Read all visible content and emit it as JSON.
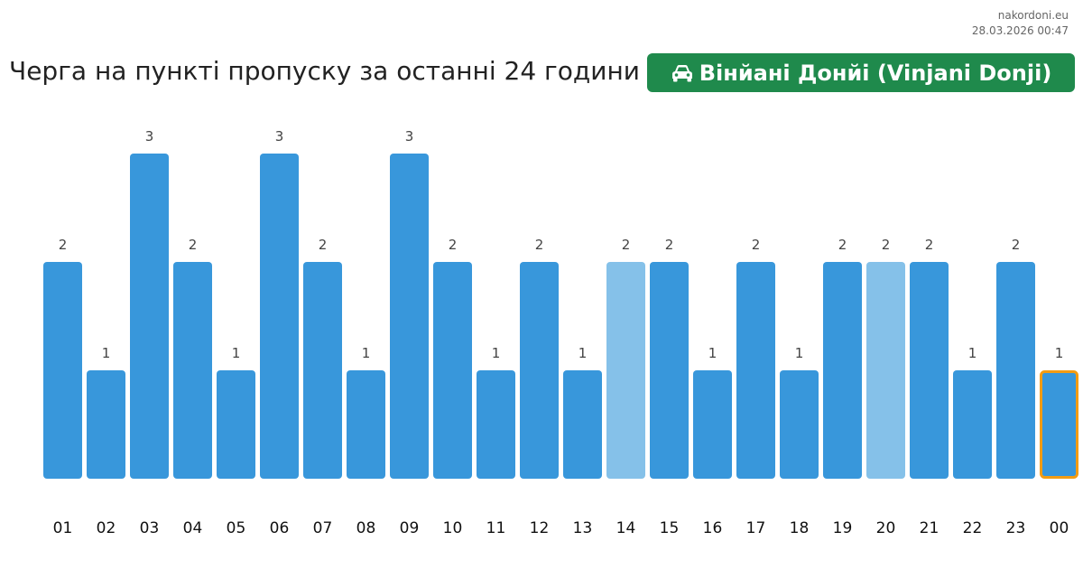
{
  "site": {
    "name": "nakordoni.eu",
    "timestamp": "28.03.2026 00:47"
  },
  "header": {
    "title": "Черга на пункті пропуску за останні 24 години",
    "checkpoint": "Вінйані Донйі (Vinjani Donji)"
  },
  "colors": {
    "bar": "#3897db",
    "bar_light": "#85c1e9",
    "highlight_border": "#f39c12",
    "badge": "#1f8a4c"
  },
  "chart_data": {
    "type": "bar",
    "categories": [
      "01",
      "02",
      "03",
      "04",
      "05",
      "06",
      "07",
      "08",
      "09",
      "10",
      "11",
      "12",
      "13",
      "14",
      "15",
      "16",
      "17",
      "18",
      "19",
      "20",
      "21",
      "22",
      "23",
      "00"
    ],
    "values": [
      2,
      1,
      3,
      2,
      1,
      3,
      2,
      1,
      3,
      2,
      1,
      2,
      1,
      2,
      2,
      1,
      2,
      1,
      2,
      2,
      2,
      1,
      2,
      1
    ],
    "light_categories": [
      "14",
      "20"
    ],
    "highlight_category": "00",
    "ylim": [
      0,
      3
    ]
  }
}
